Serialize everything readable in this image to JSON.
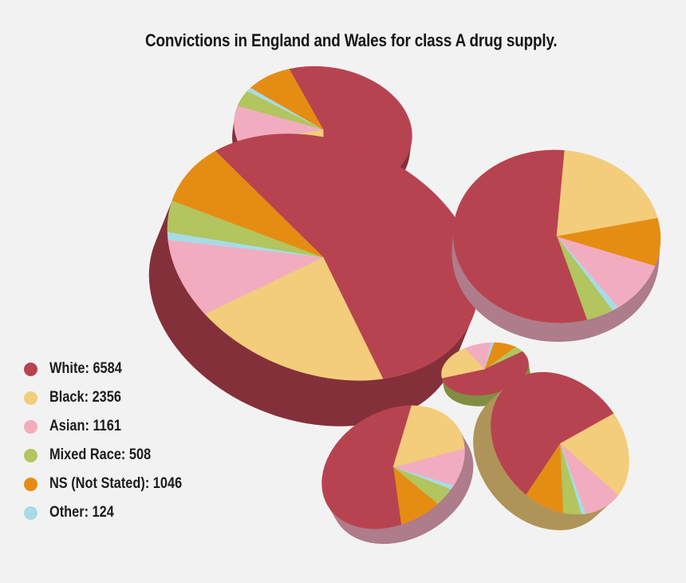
{
  "chart_data": {
    "type": "pie",
    "title": "Convictions in England and Wales for class A drug supply.",
    "series": [
      {
        "name": "White",
        "value": 6584,
        "label": "White: 6584",
        "color": "#b84350"
      },
      {
        "name": "Black",
        "value": 2356,
        "label": "Black: 2356",
        "color": "#f3cd7b"
      },
      {
        "name": "Asian",
        "value": 1161,
        "label": "Asian: 1161",
        "color": "#f2acc0"
      },
      {
        "name": "Mixed Race",
        "value": 508,
        "label": "Mixed Race: 508",
        "color": "#b2c55e"
      },
      {
        "name": "NS (Not Stated)",
        "value": 1046,
        "label": "NS (Not Stated): 1046",
        "color": "#e58d13"
      },
      {
        "name": "Other",
        "value": 124,
        "label": "Other: 124",
        "color": "#a8dbe5"
      }
    ],
    "legend_position": "bottom-left",
    "style": "scattered 3D pies"
  }
}
